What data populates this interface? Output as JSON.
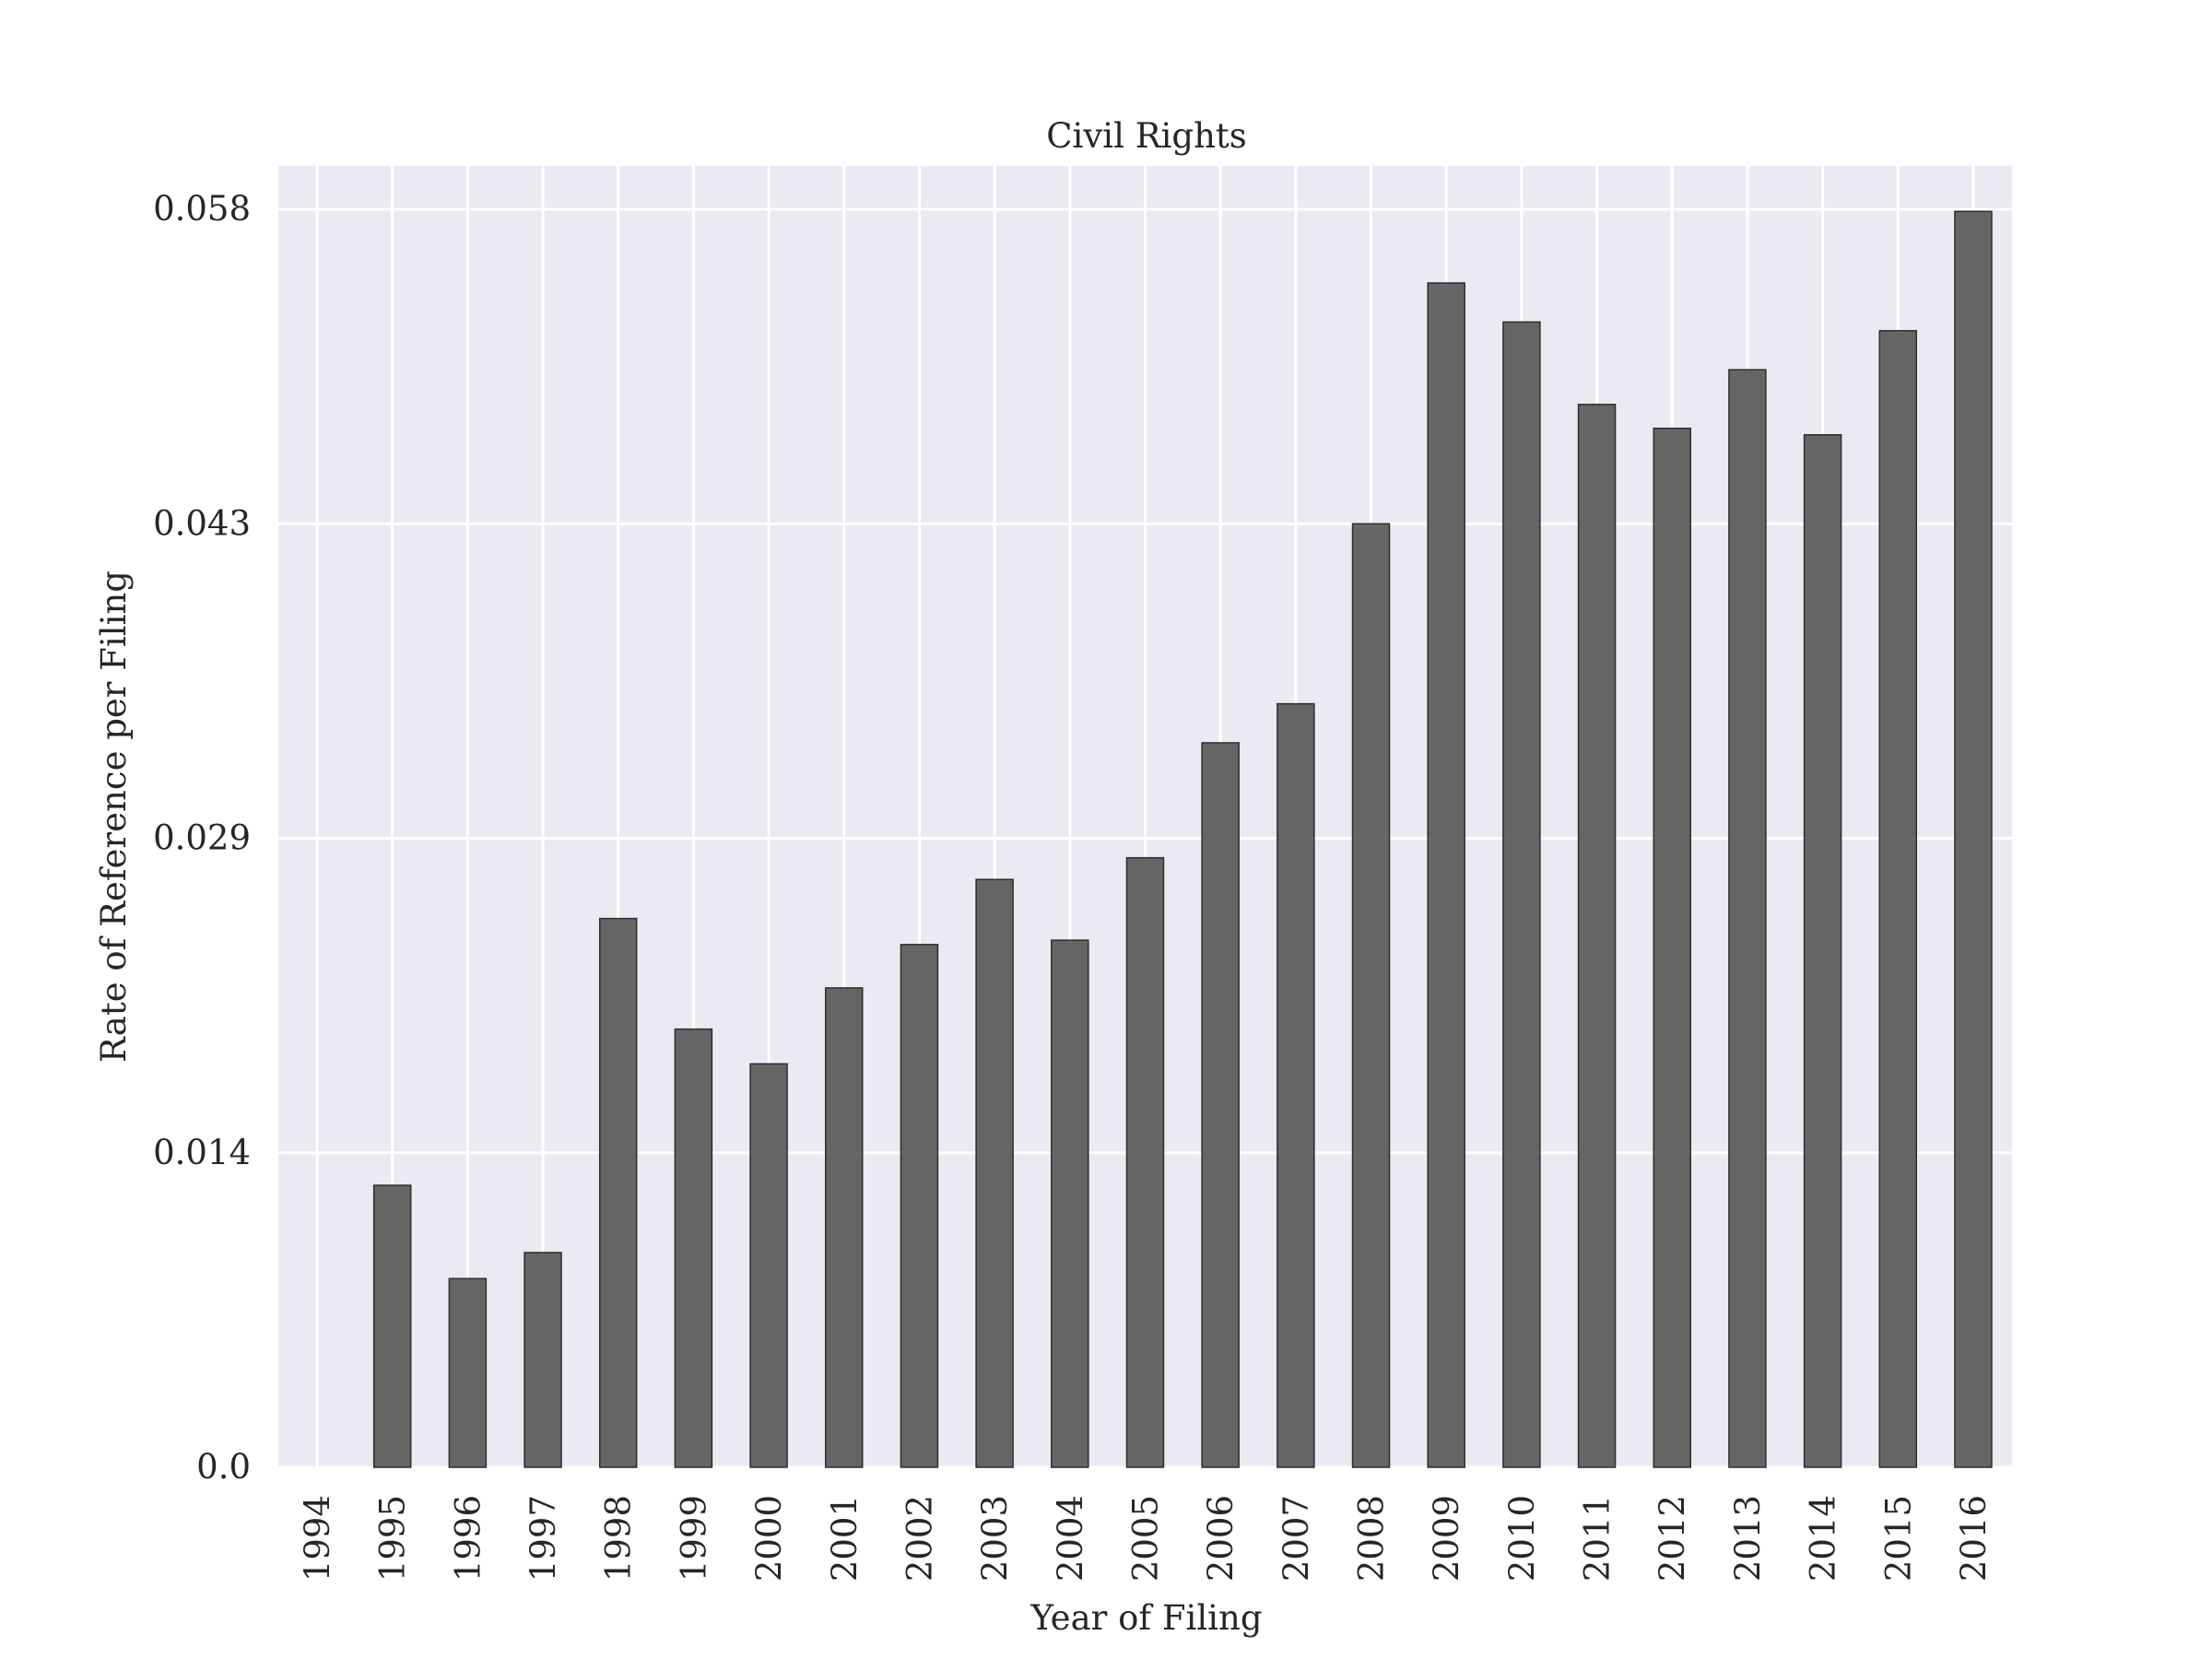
{
  "chart_data": {
    "type": "bar",
    "title": "Civil Rights",
    "xlabel": "Year of Filing",
    "ylabel": "Rate of Reference per Filing",
    "categories": [
      "1994",
      "1995",
      "1996",
      "1997",
      "1998",
      "1999",
      "2000",
      "2001",
      "2002",
      "2003",
      "2004",
      "2005",
      "2006",
      "2007",
      "2008",
      "2009",
      "2010",
      "2011",
      "2012",
      "2013",
      "2014",
      "2015",
      "2016"
    ],
    "values": [
      0.0,
      0.013,
      0.0087,
      0.0099,
      0.0253,
      0.0202,
      0.0186,
      0.0221,
      0.0241,
      0.0271,
      0.0243,
      0.0281,
      0.0334,
      0.0352,
      0.0435,
      0.0546,
      0.0528,
      0.049,
      0.0479,
      0.0506,
      0.0476,
      0.0524,
      0.0579
    ],
    "yticks": [
      "0.0",
      "0.014",
      "0.029",
      "0.043",
      "0.058"
    ],
    "ytick_values": [
      0.0,
      0.0145,
      0.029,
      0.0435,
      0.058
    ],
    "ylim": [
      0,
      0.06
    ],
    "grid": true,
    "colors": {
      "bar": "#595959",
      "background": "#eaeaf2",
      "grid": "#ffffff"
    }
  }
}
